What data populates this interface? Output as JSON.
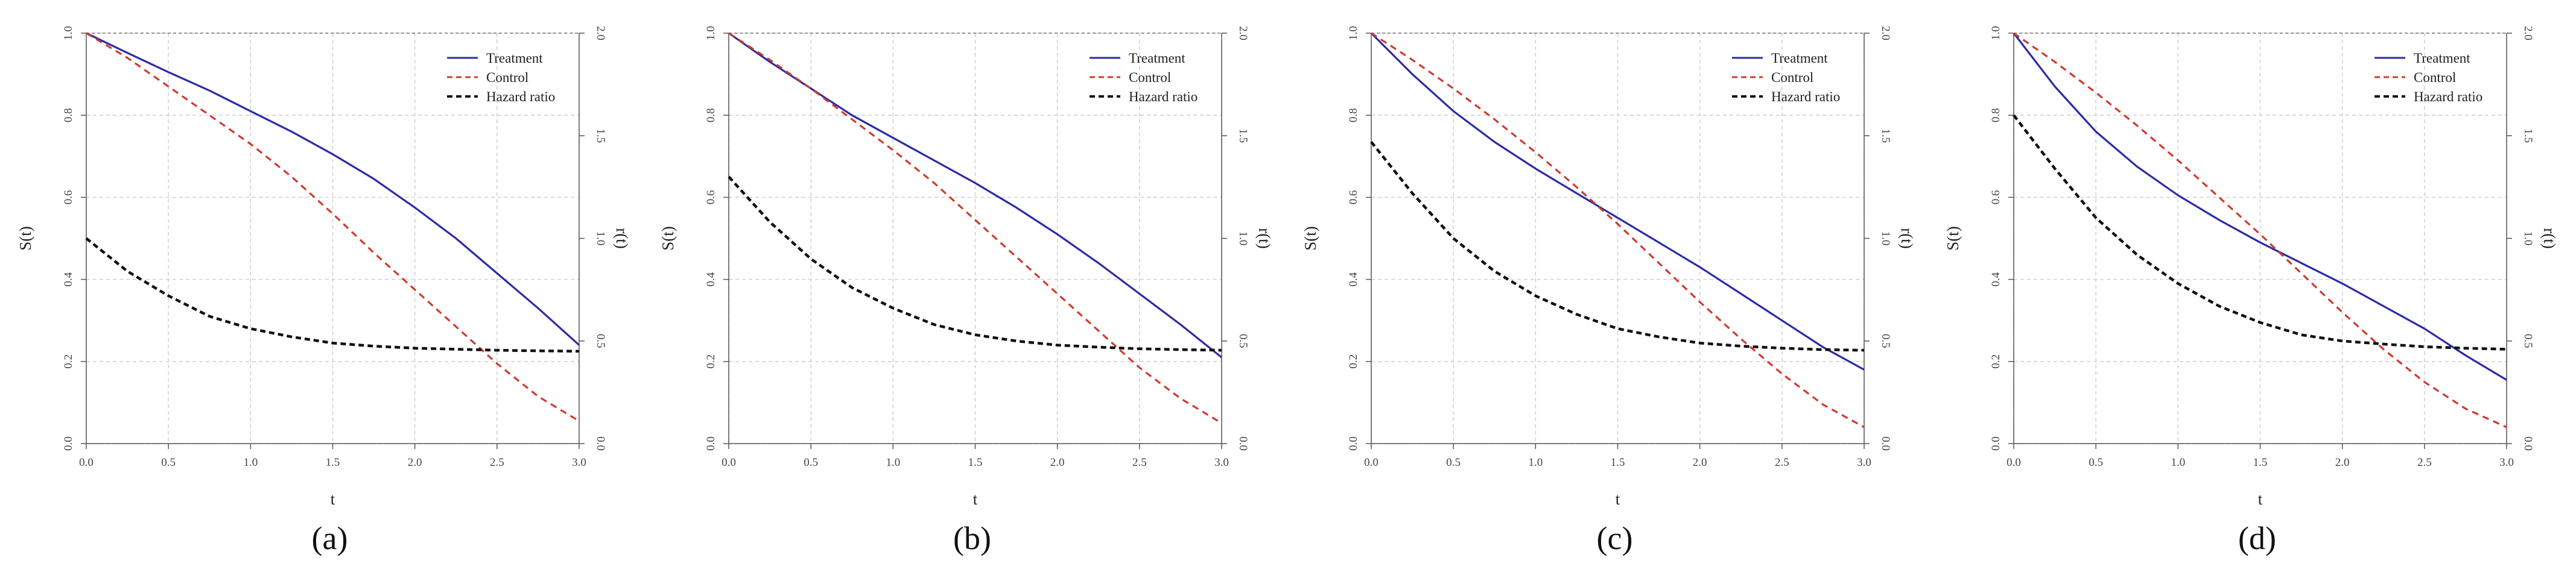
{
  "figure": {
    "panel_labels": [
      "(a)",
      "(b)",
      "(c)",
      "(d)"
    ]
  },
  "colors": {
    "treatment": "#2b2ba8",
    "control": "#d03a2c",
    "hazard": "#111111",
    "grid": "#cfcfcf",
    "axis": "#555555"
  },
  "chart_data": [
    {
      "type": "line",
      "panel": "(a)",
      "xlabel": "t",
      "ylabel": "S(t)",
      "y2label": "r(t)",
      "xlim": [
        0,
        3
      ],
      "ylim": [
        0,
        1
      ],
      "y2lim": [
        0,
        2
      ],
      "x_ticks": [
        "0.0",
        "0.5",
        "1.0",
        "1.5",
        "2.0",
        "2.5",
        "3.0"
      ],
      "y_ticks": [
        "0.0",
        "0.2",
        "0.4",
        "0.6",
        "0.8",
        "1.0"
      ],
      "y2_ticks": [
        "0.0",
        "0.5",
        "1.0",
        "1.5",
        "2.0"
      ],
      "legend": [
        "Treatment",
        "Control",
        "Hazard ratio"
      ],
      "legend_position": "top-right",
      "x": [
        0,
        0.25,
        0.5,
        0.75,
        1.0,
        1.25,
        1.5,
        1.75,
        2.0,
        2.25,
        2.5,
        2.75,
        3.0
      ],
      "series": [
        {
          "name": "Treatment",
          "axis": "left",
          "style": "solid",
          "values": [
            1.0,
            0.952,
            0.905,
            0.86,
            0.81,
            0.76,
            0.705,
            0.645,
            0.575,
            0.5,
            0.415,
            0.33,
            0.24
          ]
        },
        {
          "name": "Control",
          "axis": "left",
          "style": "dashed",
          "values": [
            1.0,
            0.94,
            0.87,
            0.8,
            0.73,
            0.65,
            0.56,
            0.465,
            0.375,
            0.285,
            0.195,
            0.115,
            0.055
          ]
        },
        {
          "name": "Hazard ratio",
          "axis": "right",
          "style": "dashed",
          "values": [
            1.0,
            0.84,
            0.72,
            0.62,
            0.56,
            0.52,
            0.49,
            0.475,
            0.465,
            0.46,
            0.455,
            0.452,
            0.45
          ]
        }
      ]
    },
    {
      "type": "line",
      "panel": "(b)",
      "xlabel": "t",
      "ylabel": "S(t)",
      "y2label": "r(t)",
      "xlim": [
        0,
        3
      ],
      "ylim": [
        0,
        1
      ],
      "y2lim": [
        0,
        2
      ],
      "x_ticks": [
        "0.0",
        "0.5",
        "1.0",
        "1.5",
        "2.0",
        "2.5",
        "3.0"
      ],
      "y_ticks": [
        "0.0",
        "0.2",
        "0.4",
        "0.6",
        "0.8",
        "1.0"
      ],
      "y2_ticks": [
        "0.0",
        "0.5",
        "1.0",
        "1.5",
        "2.0"
      ],
      "legend": [
        "Treatment",
        "Control",
        "Hazard ratio"
      ],
      "legend_position": "top-right",
      "x": [
        0,
        0.25,
        0.5,
        0.75,
        1.0,
        1.25,
        1.5,
        1.75,
        2.0,
        2.25,
        2.5,
        2.75,
        3.0
      ],
      "series": [
        {
          "name": "Treatment",
          "axis": "left",
          "style": "solid",
          "values": [
            1.0,
            0.93,
            0.865,
            0.8,
            0.745,
            0.69,
            0.635,
            0.575,
            0.51,
            0.44,
            0.365,
            0.29,
            0.21
          ]
        },
        {
          "name": "Control",
          "axis": "left",
          "style": "dashed",
          "values": [
            1.0,
            0.935,
            0.865,
            0.79,
            0.715,
            0.635,
            0.545,
            0.455,
            0.365,
            0.275,
            0.185,
            0.11,
            0.05
          ]
        },
        {
          "name": "Hazard ratio",
          "axis": "right",
          "style": "dashed",
          "values": [
            1.3,
            1.08,
            0.9,
            0.76,
            0.66,
            0.58,
            0.53,
            0.5,
            0.48,
            0.47,
            0.462,
            0.458,
            0.455
          ]
        }
      ]
    },
    {
      "type": "line",
      "panel": "(c)",
      "xlabel": "t",
      "ylabel": "S(t)",
      "y2label": "r(t)",
      "xlim": [
        0,
        3
      ],
      "ylim": [
        0,
        1
      ],
      "y2lim": [
        0,
        2
      ],
      "x_ticks": [
        "0.0",
        "0.5",
        "1.0",
        "1.5",
        "2.0",
        "2.5",
        "3.0"
      ],
      "y_ticks": [
        "0.0",
        "0.2",
        "0.4",
        "0.6",
        "0.8",
        "1.0"
      ],
      "y2_ticks": [
        "0.0",
        "0.5",
        "1.0",
        "1.5",
        "2.0"
      ],
      "legend": [
        "Treatment",
        "Control",
        "Hazard ratio"
      ],
      "legend_position": "top-right",
      "x": [
        0,
        0.25,
        0.5,
        0.75,
        1.0,
        1.25,
        1.5,
        1.75,
        2.0,
        2.25,
        2.5,
        2.75,
        3.0
      ],
      "series": [
        {
          "name": "Treatment",
          "axis": "left",
          "style": "solid",
          "values": [
            1.0,
            0.9,
            0.81,
            0.735,
            0.67,
            0.61,
            0.55,
            0.49,
            0.43,
            0.365,
            0.3,
            0.235,
            0.18
          ]
        },
        {
          "name": "Control",
          "axis": "left",
          "style": "dashed",
          "values": [
            1.0,
            0.935,
            0.865,
            0.79,
            0.71,
            0.625,
            0.535,
            0.44,
            0.345,
            0.255,
            0.17,
            0.095,
            0.04
          ]
        },
        {
          "name": "Hazard ratio",
          "axis": "right",
          "style": "dashed",
          "values": [
            1.47,
            1.22,
            1.0,
            0.84,
            0.72,
            0.63,
            0.56,
            0.52,
            0.49,
            0.475,
            0.465,
            0.458,
            0.455
          ]
        }
      ]
    },
    {
      "type": "line",
      "panel": "(d)",
      "xlabel": "t",
      "ylabel": "S(t)",
      "y2label": "r(t)",
      "xlim": [
        0,
        3
      ],
      "ylim": [
        0,
        1
      ],
      "y2lim": [
        0,
        2
      ],
      "x_ticks": [
        "0.0",
        "0.5",
        "1.0",
        "1.5",
        "2.0",
        "2.5",
        "3.0"
      ],
      "y_ticks": [
        "0.0",
        "0.2",
        "0.4",
        "0.6",
        "0.8",
        "1.0"
      ],
      "y2_ticks": [
        "0.0",
        "0.5",
        "1.0",
        "1.5",
        "2.0"
      ],
      "legend": [
        "Treatment",
        "Control",
        "Hazard ratio"
      ],
      "legend_position": "top-right",
      "x": [
        0,
        0.25,
        0.5,
        0.75,
        1.0,
        1.25,
        1.5,
        1.75,
        2.0,
        2.25,
        2.5,
        2.75,
        3.0
      ],
      "series": [
        {
          "name": "Treatment",
          "axis": "left",
          "style": "solid",
          "values": [
            1.0,
            0.87,
            0.76,
            0.675,
            0.605,
            0.545,
            0.49,
            0.44,
            0.39,
            0.335,
            0.28,
            0.215,
            0.155
          ]
        },
        {
          "name": "Control",
          "axis": "left",
          "style": "dashed",
          "values": [
            1.0,
            0.93,
            0.855,
            0.775,
            0.69,
            0.6,
            0.51,
            0.415,
            0.32,
            0.23,
            0.15,
            0.085,
            0.04
          ]
        },
        {
          "name": "Hazard ratio",
          "axis": "right",
          "style": "dashed",
          "values": [
            1.6,
            1.34,
            1.1,
            0.92,
            0.78,
            0.67,
            0.59,
            0.53,
            0.5,
            0.485,
            0.472,
            0.465,
            0.46
          ]
        }
      ]
    }
  ]
}
